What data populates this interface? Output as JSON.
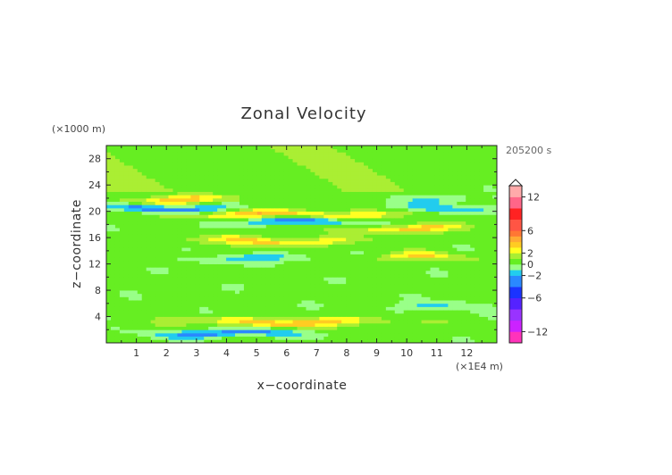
{
  "chart_data": {
    "type": "heatmap",
    "title": "Zonal Velocity",
    "xlabel": "x−coordinate",
    "ylabel": "z−coordinate",
    "x_unit": "(×1E4 m)",
    "y_unit": "(×1000 m)",
    "time_label": "205200 s",
    "xlim": [
      0,
      13
    ],
    "ylim": [
      0,
      30
    ],
    "x_ticks": [
      "1",
      "2",
      "3",
      "4",
      "5",
      "6",
      "7",
      "8",
      "9",
      "10",
      "11",
      "12"
    ],
    "y_ticks": [
      "4",
      "8",
      "12",
      "16",
      "20",
      "24",
      "28"
    ],
    "colorbar": {
      "labels": [
        "12",
        "6",
        "2",
        "0",
        "−2",
        "−6",
        "−12"
      ],
      "levels": [
        -14,
        -12,
        -10,
        -8,
        -6,
        -4,
        -2,
        -1,
        0,
        1,
        2,
        3,
        4,
        5,
        6,
        8,
        10,
        12,
        14
      ],
      "colors": [
        "#ff33bb",
        "#cc22ff",
        "#9933ff",
        "#5522ff",
        "#1a33ff",
        "#2a88ff",
        "#22ccee",
        "#99ff88",
        "#66ee22",
        "#aaee33",
        "#ffff22",
        "#ffcc22",
        "#ffaa33",
        "#ff7733",
        "#ff5544",
        "#ff2222",
        "#ff6688",
        "#ffaaaa"
      ],
      "extend_top": true
    },
    "bands": [
      {
        "z": 1.5,
        "amp": -3.0,
        "x_center": 4.0,
        "x_width": 5.0
      },
      {
        "z": 3.2,
        "amp": 3.5,
        "x_center": 6.0,
        "x_width": 6.0
      },
      {
        "z": 5.5,
        "amp": -1.5,
        "x_center": 11.0,
        "x_width": 3.0
      },
      {
        "z": 12.8,
        "amp": -2.0,
        "x_center": 5.0,
        "x_width": 4.0
      },
      {
        "z": 13.0,
        "amp": 2.5,
        "x_center": 10.5,
        "x_width": 3.0
      },
      {
        "z": 15.5,
        "amp": 3.0,
        "x_center": 5.5,
        "x_width": 5.0
      },
      {
        "z": 17.5,
        "amp": 3.0,
        "x_center": 10.0,
        "x_width": 4.0
      },
      {
        "z": 18.5,
        "amp": -3.5,
        "x_center": 6.5,
        "x_width": 4.0
      },
      {
        "z": 19.5,
        "amp": 3.5,
        "x_center": 6.0,
        "x_width": 7.0
      },
      {
        "z": 20.5,
        "amp": -3.5,
        "x_center": 2.0,
        "x_width": 4.0
      },
      {
        "z": 20.5,
        "amp": -2.5,
        "x_center": 11.5,
        "x_width": 3.0
      },
      {
        "z": 21.8,
        "amp": 3.0,
        "x_center": 2.5,
        "x_width": 4.0
      },
      {
        "z": 22.0,
        "amp": -1.5,
        "x_center": 11.0,
        "x_width": 2.5
      }
    ]
  }
}
